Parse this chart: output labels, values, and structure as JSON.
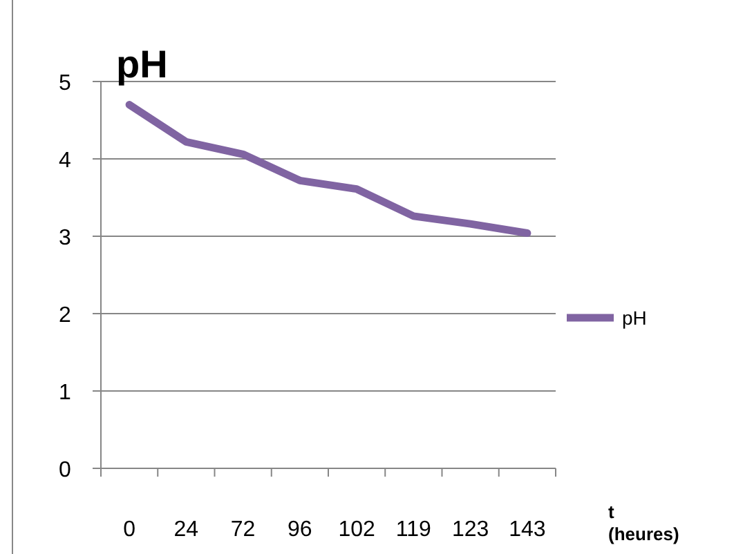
{
  "chart_data": {
    "type": "line",
    "title": "pH",
    "xlabel": "t (heures)",
    "categories": [
      "0",
      "24",
      "72",
      "96",
      "102",
      "119",
      "123",
      "143"
    ],
    "series": [
      {
        "name": "pH",
        "color": "#8064a2",
        "values": [
          4.7,
          4.22,
          4.06,
          3.72,
          3.61,
          3.26,
          3.16,
          3.04
        ]
      }
    ],
    "ylim": [
      0,
      5
    ],
    "yticks": [
      0,
      1,
      2,
      3,
      4,
      5
    ],
    "grid": "y",
    "legend": "right",
    "marker": "none",
    "line_style": "solid"
  }
}
